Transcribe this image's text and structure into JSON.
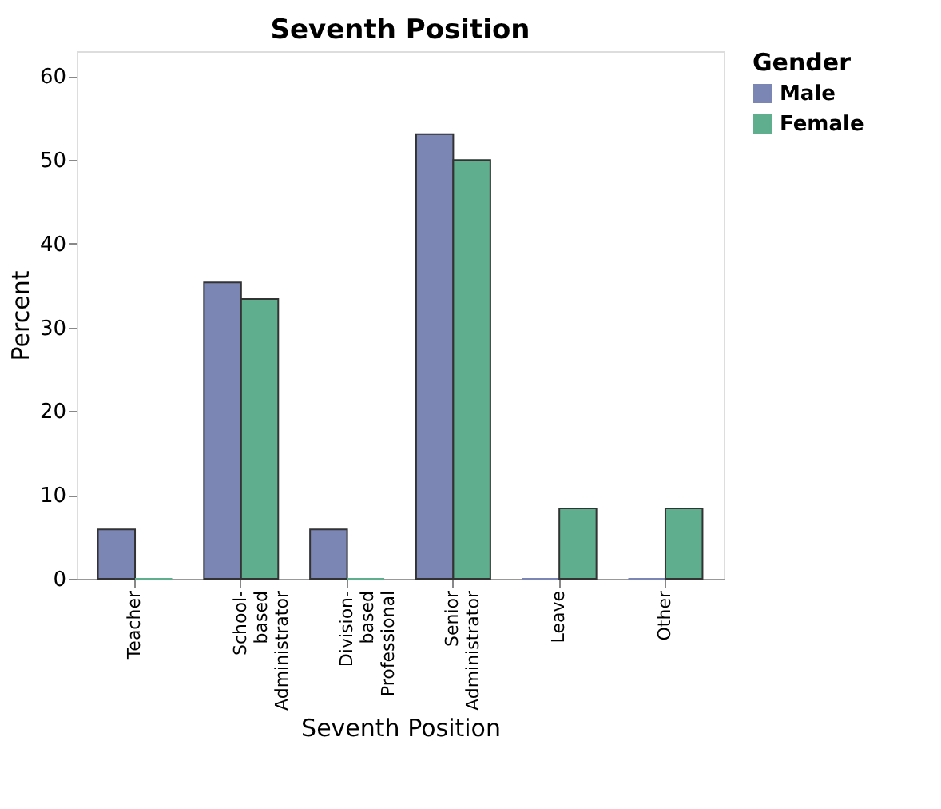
{
  "chart_data": {
    "type": "bar",
    "title": "Seventh Position",
    "xlabel": "Seventh Position",
    "ylabel": "Percent",
    "legend_title": "Gender",
    "categories": [
      "Teacher",
      "School-\nbased\nAdministrator",
      "Division-\nbased\nProfessional",
      "Senior\nAdministrator",
      "Leave",
      "Other"
    ],
    "series": [
      {
        "name": "Male",
        "color": "#7b86b4",
        "values": [
          5.9,
          35.4,
          5.9,
          53.1,
          0,
          0
        ]
      },
      {
        "name": "Female",
        "color": "#5fae8e",
        "values": [
          0,
          33.4,
          0,
          50.0,
          8.4,
          8.4
        ]
      }
    ],
    "ylim": [
      0,
      63
    ],
    "yticks": [
      0,
      10,
      20,
      30,
      40,
      50,
      60
    ],
    "grid": false,
    "legend": "top right"
  }
}
